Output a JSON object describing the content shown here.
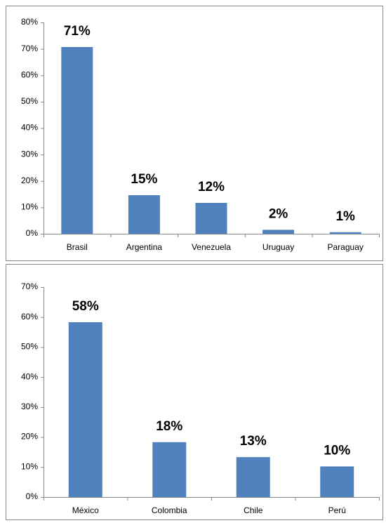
{
  "chart_data": [
    {
      "type": "bar",
      "categories": [
        "Brasil",
        "Argentina",
        "Venezuela",
        "Uruguay",
        "Paraguay"
      ],
      "values": [
        70.7,
        14.6,
        11.7,
        1.5,
        0.6
      ],
      "value_labels": [
        "71%",
        "15%",
        "12%",
        "2%",
        "1%"
      ],
      "color": "#4f81bd",
      "ylim": [
        0,
        80
      ],
      "yticks": [
        {
          "value": 0,
          "label": "0%"
        },
        {
          "value": 10,
          "label": "10%"
        },
        {
          "value": 20,
          "label": "20%"
        },
        {
          "value": 30,
          "label": "30%"
        },
        {
          "value": 40,
          "label": "40%"
        },
        {
          "value": 50,
          "label": "50%"
        },
        {
          "value": 60,
          "label": "60%"
        },
        {
          "value": 70,
          "label": "70%"
        },
        {
          "value": 80,
          "label": "80%"
        }
      ],
      "grid": false
    },
    {
      "type": "bar",
      "categories": [
        "México",
        "Colombia",
        "Chile",
        "Perú"
      ],
      "values": [
        58.3,
        18.3,
        13.3,
        10.2
      ],
      "value_labels": [
        "58%",
        "18%",
        "13%",
        "10%"
      ],
      "color": "#4f81bd",
      "ylim": [
        0,
        70
      ],
      "yticks": [
        {
          "value": 0,
          "label": "0%"
        },
        {
          "value": 10,
          "label": "10%"
        },
        {
          "value": 20,
          "label": "20%"
        },
        {
          "value": 30,
          "label": "30%"
        },
        {
          "value": 40,
          "label": "40%"
        },
        {
          "value": 50,
          "label": "50%"
        },
        {
          "value": 60,
          "label": "60%"
        },
        {
          "value": 70,
          "label": "70%"
        }
      ],
      "grid": false
    }
  ]
}
